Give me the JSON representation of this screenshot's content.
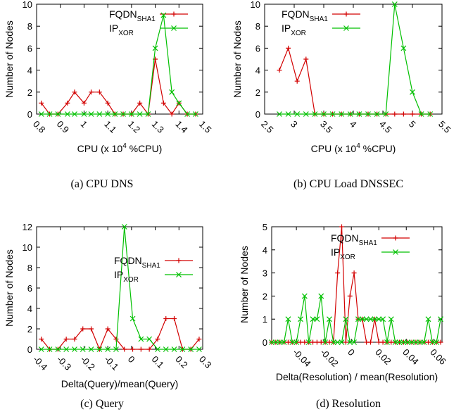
{
  "colors": {
    "fqdn": "#d20000",
    "ip": "#00c000",
    "axis": "#000000"
  },
  "chart_data": [
    {
      "type": "line",
      "caption": "(a) CPU DNS",
      "xlabel": "CPU (x 10",
      "xlabel_sup": "4",
      "xlabel_tail": " %CPU)",
      "ylabel": "Number of Nodes",
      "xlim": [
        0.8,
        1.5
      ],
      "ylim": [
        0,
        10
      ],
      "x_ticks": [
        0.8,
        0.9,
        1.0,
        1.1,
        1.2,
        1.3,
        1.4,
        1.5
      ],
      "x_tick_labels": [
        "0.8",
        "0.9",
        "1",
        "1.1",
        "1.2",
        "1.3",
        "1.4",
        "1.5"
      ],
      "y_ticks": [
        0,
        2,
        4,
        6,
        8,
        10
      ],
      "y_tick_labels": [
        "0",
        "2",
        "4",
        "6",
        "8",
        "10"
      ],
      "legend": "top-right",
      "series": [
        {
          "name": "FQDN",
          "name_sub": "SHA1",
          "color_key": "fqdn",
          "marker": "plus",
          "x": [
            0.82,
            0.855,
            0.89,
            0.93,
            0.96,
            1.0,
            1.03,
            1.065,
            1.1,
            1.13,
            1.165,
            1.2,
            1.235,
            1.27,
            1.3,
            1.335,
            1.37,
            1.4,
            1.435,
            1.47
          ],
          "values": [
            1,
            0,
            0,
            1,
            2,
            1,
            2,
            2,
            1,
            0,
            0,
            0,
            1,
            0,
            5,
            1,
            0,
            1,
            0,
            0
          ]
        },
        {
          "name": "IP",
          "name_sub": "XOR",
          "color_key": "ip",
          "marker": "cross",
          "x": [
            0.82,
            0.855,
            0.89,
            0.93,
            0.96,
            1.0,
            1.03,
            1.065,
            1.1,
            1.13,
            1.165,
            1.2,
            1.235,
            1.27,
            1.3,
            1.335,
            1.37,
            1.4,
            1.435,
            1.47
          ],
          "values": [
            0,
            0,
            0,
            0,
            0,
            0,
            0,
            0,
            0,
            0,
            0,
            0,
            0,
            0,
            6,
            9,
            2,
            1,
            0,
            0
          ]
        }
      ]
    },
    {
      "type": "line",
      "caption": "(b) CPU Load DNSSEC",
      "xlabel": "CPU (x 10",
      "xlabel_sup": "4",
      "xlabel_tail": " %CPU)",
      "ylabel": "Number of Nodes",
      "xlim": [
        2.5,
        5.5
      ],
      "ylim": [
        0,
        10
      ],
      "x_ticks": [
        2.5,
        3.0,
        3.5,
        4.0,
        4.5,
        5.0,
        5.5
      ],
      "x_tick_labels": [
        "2.5",
        "3",
        "3.5",
        "4",
        "4.5",
        "5",
        "5.5"
      ],
      "y_ticks": [
        0,
        2,
        4,
        6,
        8,
        10
      ],
      "y_tick_labels": [
        "0",
        "2",
        "4",
        "6",
        "8",
        "10"
      ],
      "legend": "top-left",
      "series": [
        {
          "name": "FQDN",
          "name_sub": "SHA1",
          "color_key": "fqdn",
          "marker": "plus",
          "x": [
            2.75,
            2.9,
            3.05,
            3.2,
            3.35,
            3.5,
            3.65,
            3.8,
            3.95,
            4.1,
            4.25,
            4.4,
            4.55,
            4.7,
            4.85,
            5.0,
            5.15,
            5.3
          ],
          "values": [
            4,
            6,
            3,
            5,
            0,
            0,
            0,
            0,
            0,
            0,
            0,
            0,
            0,
            0,
            0,
            0,
            0,
            0
          ]
        },
        {
          "name": "IP",
          "name_sub": "XOR",
          "color_key": "ip",
          "marker": "cross",
          "x": [
            2.75,
            2.9,
            3.05,
            3.2,
            3.35,
            3.5,
            3.65,
            3.8,
            3.95,
            4.1,
            4.25,
            4.4,
            4.55,
            4.7,
            4.85,
            5.0,
            5.15,
            5.3
          ],
          "values": [
            0,
            0,
            0,
            0,
            0,
            0,
            0,
            0,
            0,
            0,
            0,
            0,
            0,
            10,
            6,
            2,
            0,
            0
          ]
        }
      ]
    },
    {
      "type": "line",
      "caption": "(c) Query",
      "xlabel": "Delta(Query)/mean(Query)",
      "ylabel": "Number of Nodes",
      "xlim": [
        -0.4,
        0.3
      ],
      "ylim": [
        0,
        12
      ],
      "x_ticks": [
        -0.4,
        -0.3,
        -0.2,
        -0.1,
        0.0,
        0.1,
        0.2,
        0.3
      ],
      "x_tick_labels": [
        "-0.4",
        "-0.3",
        "-0.2",
        "-0.1",
        "0",
        "0.1",
        "0.2",
        "0.3"
      ],
      "y_ticks": [
        0,
        2,
        4,
        6,
        8,
        10,
        12
      ],
      "y_tick_labels": [
        "0",
        "2",
        "4",
        "6",
        "8",
        "10",
        "12"
      ],
      "legend": "top-right",
      "series": [
        {
          "name": "FQDN",
          "name_sub": "SHA1",
          "color_key": "fqdn",
          "marker": "plus",
          "x": [
            -0.38,
            -0.345,
            -0.31,
            -0.275,
            -0.24,
            -0.205,
            -0.17,
            -0.135,
            -0.1,
            -0.065,
            -0.03,
            0.005,
            0.04,
            0.075,
            0.11,
            0.145,
            0.18,
            0.215,
            0.25,
            0.285
          ],
          "values": [
            1,
            0,
            0,
            1,
            1,
            2,
            2,
            0,
            2,
            1,
            0,
            0,
            0,
            0,
            1,
            3,
            3,
            0,
            0,
            1
          ]
        },
        {
          "name": "IP",
          "name_sub": "XOR",
          "color_key": "ip",
          "marker": "cross",
          "x": [
            -0.38,
            -0.345,
            -0.31,
            -0.275,
            -0.24,
            -0.205,
            -0.17,
            -0.135,
            -0.1,
            -0.065,
            -0.03,
            0.005,
            0.04,
            0.075,
            0.11,
            0.145,
            0.18,
            0.215,
            0.25,
            0.285
          ],
          "values": [
            0,
            0,
            0,
            0,
            0,
            0,
            0,
            0,
            0,
            0,
            12,
            3,
            1,
            1,
            0,
            0,
            0,
            0,
            0,
            0
          ]
        }
      ]
    },
    {
      "type": "line",
      "caption": "(d) Resolution",
      "xlabel": "Delta(Resolution) / mean(Resolution)",
      "ylabel": "Number of Nodes",
      "xlim": [
        -0.058,
        0.066
      ],
      "ylim": [
        0,
        5
      ],
      "x_ticks": [
        -0.04,
        -0.02,
        0.0,
        0.02,
        0.04,
        0.06
      ],
      "x_tick_labels": [
        "-0.04",
        "-0.02",
        "0",
        "0.02",
        "0.04",
        "0.06"
      ],
      "y_ticks": [
        0,
        1,
        2,
        3,
        4,
        5
      ],
      "y_tick_labels": [
        "0",
        "1",
        "2",
        "3",
        "4",
        "5"
      ],
      "legend": "top-right",
      "series": [
        {
          "name": "FQDN",
          "name_sub": "SHA1",
          "color_key": "fqdn",
          "marker": "plus",
          "x": [
            -0.058,
            -0.055,
            -0.052,
            -0.049,
            -0.046,
            -0.043,
            -0.04,
            -0.037,
            -0.034,
            -0.031,
            -0.028,
            -0.025,
            -0.022,
            -0.019,
            -0.016,
            -0.013,
            -0.01,
            -0.007,
            -0.004,
            -0.001,
            0.002,
            0.005,
            0.008,
            0.011,
            0.014,
            0.017,
            0.02,
            0.023,
            0.026,
            0.029,
            0.032,
            0.035,
            0.038,
            0.041,
            0.044,
            0.047,
            0.05,
            0.053,
            0.056,
            0.059,
            0.062,
            0.065
          ],
          "values": [
            0,
            0,
            0,
            0,
            0,
            0,
            0,
            0,
            0,
            0,
            0,
            0,
            0,
            0,
            0,
            0,
            3,
            5,
            0,
            2,
            3,
            1,
            1,
            0,
            0,
            1,
            0,
            0,
            0,
            0,
            0,
            0,
            0,
            0,
            0,
            0,
            0,
            0,
            0,
            0,
            0,
            0
          ]
        },
        {
          "name": "IP",
          "name_sub": "XOR",
          "color_key": "ip",
          "marker": "cross",
          "x": [
            -0.058,
            -0.055,
            -0.052,
            -0.049,
            -0.046,
            -0.043,
            -0.04,
            -0.037,
            -0.034,
            -0.031,
            -0.028,
            -0.025,
            -0.022,
            -0.019,
            -0.016,
            -0.013,
            -0.01,
            -0.007,
            -0.004,
            -0.001,
            0.002,
            0.005,
            0.008,
            0.011,
            0.014,
            0.017,
            0.02,
            0.023,
            0.026,
            0.029,
            0.032,
            0.035,
            0.038,
            0.041,
            0.044,
            0.047,
            0.05,
            0.053,
            0.056,
            0.059,
            0.062,
            0.065
          ],
          "values": [
            0,
            0,
            0,
            0,
            1,
            0,
            0,
            1,
            2,
            0,
            1,
            1,
            2,
            0,
            1,
            0,
            0,
            0,
            1,
            0,
            0,
            1,
            1,
            1,
            1,
            1,
            1,
            1,
            0,
            1,
            0,
            0,
            0,
            0,
            0,
            0,
            0,
            0,
            1,
            0,
            0,
            1
          ]
        }
      ]
    }
  ]
}
